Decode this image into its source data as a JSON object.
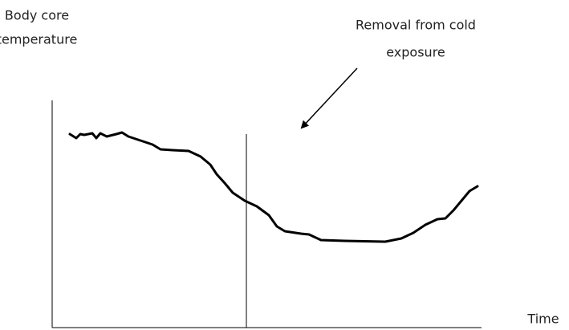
{
  "y_axis_label": [
    "Body core",
    "temperature"
  ],
  "annotation": [
    "Removal from cold",
    "exposure"
  ],
  "x_axis_label": "Time"
}
